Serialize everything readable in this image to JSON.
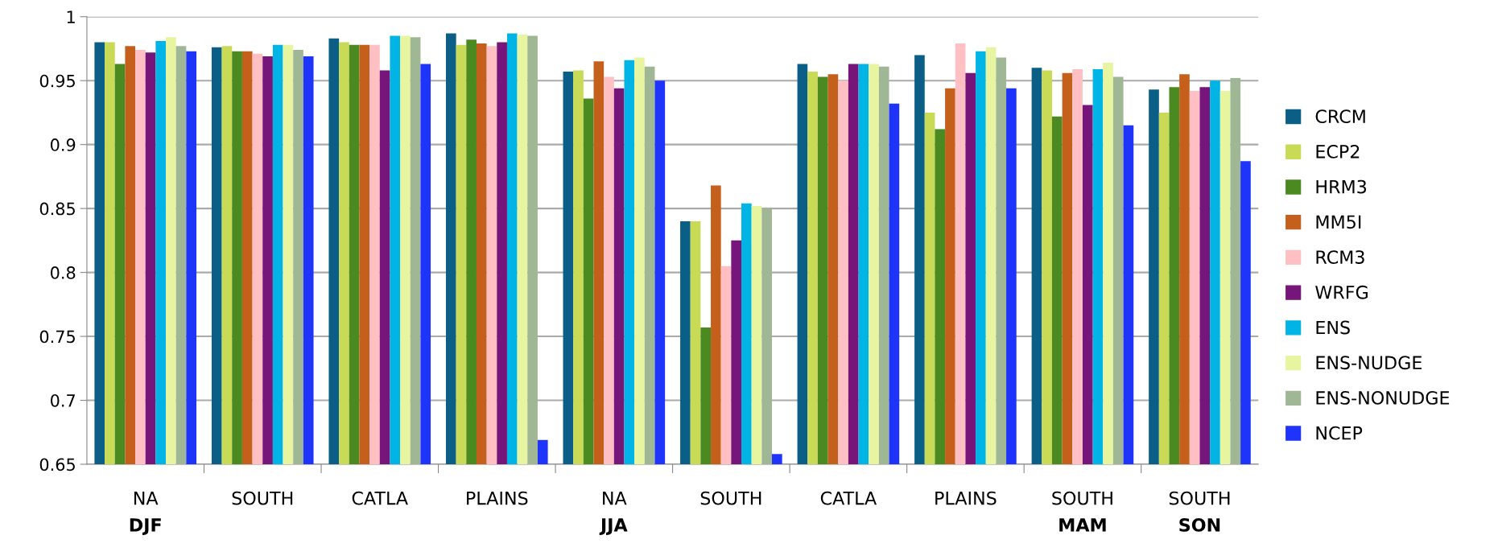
{
  "chart_data": {
    "type": "bar",
    "categories": [
      "NA\nDJF",
      "SOUTH",
      "CATLA",
      "PLAINS",
      "NA\nJJA",
      "SOUTH",
      "CATLA",
      "PLAINS",
      "SOUTH\nMAM",
      "SOUTH\nSON"
    ],
    "series": [
      {
        "name": "CRCM",
        "color": "#0b5f86",
        "values": [
          0.98,
          0.976,
          0.983,
          0.987,
          0.957,
          0.84,
          0.963,
          0.97,
          0.96,
          0.943
        ]
      },
      {
        "name": "ECP2",
        "color": "#c8da56",
        "values": [
          0.98,
          0.977,
          0.98,
          0.978,
          0.958,
          0.84,
          0.957,
          0.925,
          0.958,
          0.925
        ]
      },
      {
        "name": "HRM3",
        "color": "#4a8a20",
        "values": [
          0.963,
          0.973,
          0.978,
          0.982,
          0.936,
          0.757,
          0.953,
          0.912,
          0.922,
          0.945
        ]
      },
      {
        "name": "MM5I",
        "color": "#c4601c",
        "values": [
          0.977,
          0.973,
          0.978,
          0.979,
          0.965,
          0.868,
          0.955,
          0.944,
          0.956,
          0.955
        ]
      },
      {
        "name": "RCM3",
        "color": "#ffbfc3",
        "values": [
          0.974,
          0.971,
          0.978,
          0.977,
          0.953,
          0.805,
          0.95,
          0.979,
          0.959,
          0.942
        ]
      },
      {
        "name": "WRFG",
        "color": "#76157a",
        "values": [
          0.972,
          0.969,
          0.958,
          0.98,
          0.944,
          0.825,
          0.963,
          0.956,
          0.931,
          0.945
        ]
      },
      {
        "name": "ENS",
        "color": "#00b5e6",
        "values": [
          0.981,
          0.978,
          0.985,
          0.987,
          0.966,
          0.854,
          0.963,
          0.973,
          0.959,
          0.95
        ]
      },
      {
        "name": "ENS-NUDGE",
        "color": "#e8f5a0",
        "values": [
          0.984,
          0.978,
          0.985,
          0.986,
          0.968,
          0.852,
          0.963,
          0.976,
          0.964,
          0.942
        ]
      },
      {
        "name": "ENS-NONUDGE",
        "color": "#9fb795",
        "values": [
          0.977,
          0.974,
          0.984,
          0.985,
          0.961,
          0.85,
          0.961,
          0.968,
          0.953,
          0.952
        ]
      },
      {
        "name": "NCEP",
        "color": "#1f34fb",
        "values": [
          0.973,
          0.969,
          0.963,
          0.669,
          0.95,
          0.658,
          0.932,
          0.944,
          0.915,
          0.887
        ]
      }
    ],
    "ylim": [
      0.65,
      1
    ],
    "yticks": [
      {
        "value": 0.65,
        "label": "0.65"
      },
      {
        "value": 0.7,
        "label": "0.7"
      },
      {
        "value": 0.75,
        "label": "0.75"
      },
      {
        "value": 0.8,
        "label": "0.8"
      },
      {
        "value": 0.85,
        "label": "0.85"
      },
      {
        "value": 0.9,
        "label": "0.9"
      },
      {
        "value": 0.95,
        "label": "0.95"
      },
      {
        "value": 1,
        "label": "1"
      }
    ],
    "grid": "y",
    "legend": "right"
  }
}
